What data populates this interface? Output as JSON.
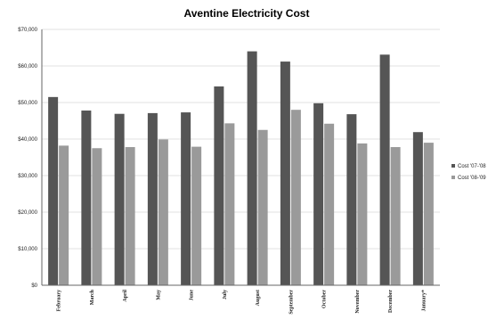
{
  "chart_data": {
    "type": "bar",
    "title": "Aventine Electricity Cost",
    "categories": [
      "February",
      "March",
      "April",
      "May",
      "June",
      "July",
      "August",
      "September",
      "October",
      "November",
      "December",
      "January*"
    ],
    "series": [
      {
        "name": "Cost '07-'08",
        "color": "#555555",
        "values": [
          51500,
          47800,
          46900,
          47100,
          47300,
          54400,
          64000,
          61200,
          49800,
          46800,
          63100,
          41900
        ]
      },
      {
        "name": "Cost '08-'09",
        "color": "#9a9a9a",
        "values": [
          38200,
          37500,
          37800,
          39900,
          37900,
          44300,
          42500,
          48000,
          44200,
          38800,
          37800,
          39000
        ]
      }
    ],
    "y_ticks": [
      "$0",
      "$10,000",
      "$20,000",
      "$30,000",
      "$40,000",
      "$50,000",
      "$60,000",
      "$70,000"
    ],
    "ylim": [
      0,
      70000
    ],
    "grid": true,
    "legend_position": "right"
  }
}
